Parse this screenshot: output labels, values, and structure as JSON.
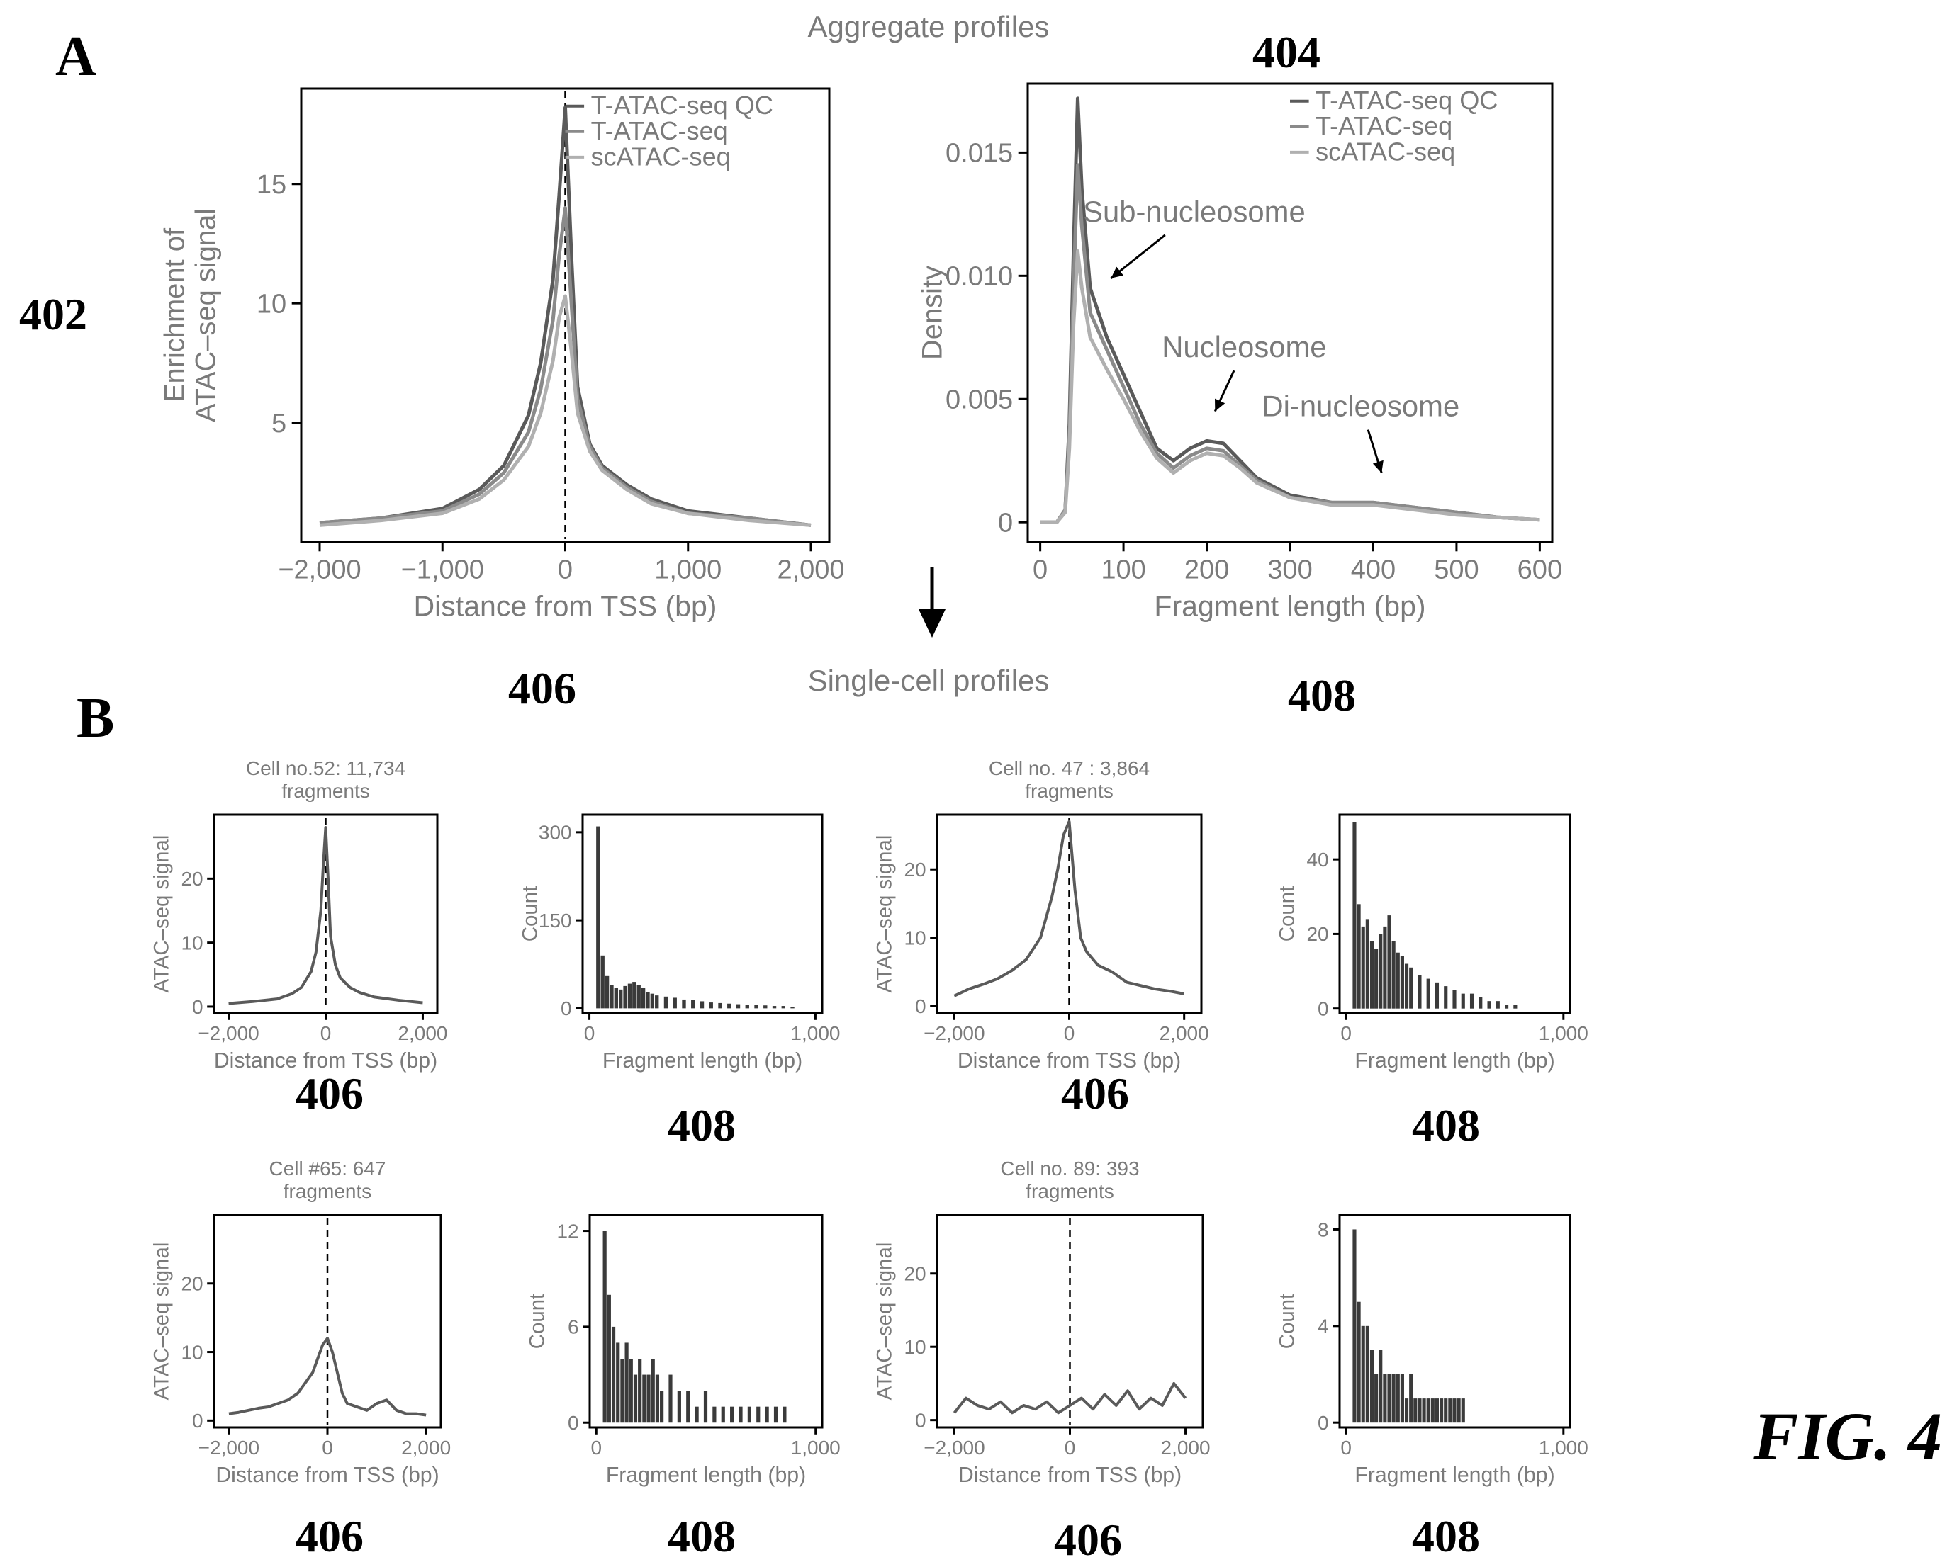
{
  "figure": {
    "panel_a_letter": "A",
    "panel_b_letter": "B",
    "aggregate_heading": "Aggregate profiles",
    "single_cell_heading": "Single-cell profiles",
    "fig_label": "FIG. 4",
    "refs": {
      "r402": "402",
      "r404": "404",
      "r406": "406",
      "r408": "408"
    }
  },
  "chart_data": [
    {
      "id": "agg-tss",
      "type": "line",
      "title": "",
      "xlabel": "Distance from TSS (bp)",
      "ylabel_lines": [
        "Enrichment of",
        "ATAC–seq signal"
      ],
      "xlim": [
        -2150,
        2150
      ],
      "ylim": [
        0,
        19
      ],
      "xticks": [
        -2000,
        -1000,
        0,
        1000,
        2000
      ],
      "xtick_labels": [
        "−2,000",
        "−1,000",
        "0",
        "1,000",
        "2,000"
      ],
      "yticks": [
        5,
        10,
        15
      ],
      "ytick_labels": [
        "5",
        "10",
        "15"
      ],
      "vline_x": 0,
      "legend": {
        "position": "top-right",
        "entries": [
          "T-ATAC-seq QC",
          "T-ATAC-seq",
          "scATAC-seq"
        ]
      },
      "series": [
        {
          "name": "T-ATAC-seq QC",
          "x": [
            -2000,
            -1500,
            -1000,
            -700,
            -500,
            -300,
            -200,
            -100,
            -50,
            0,
            50,
            100,
            200,
            300,
            500,
            700,
            1000,
            1500,
            2000
          ],
          "y": [
            0.8,
            1.0,
            1.4,
            2.2,
            3.2,
            5.3,
            7.5,
            11.0,
            14.5,
            18.2,
            12.0,
            6.5,
            4.1,
            3.2,
            2.4,
            1.8,
            1.3,
            1.0,
            0.7
          ]
        },
        {
          "name": "T-ATAC-seq",
          "x": [
            -2000,
            -1500,
            -1000,
            -700,
            -500,
            -300,
            -200,
            -100,
            -50,
            0,
            50,
            100,
            200,
            300,
            500,
            700,
            1000,
            1500,
            2000
          ],
          "y": [
            0.8,
            1.0,
            1.3,
            2.0,
            2.9,
            4.6,
            6.4,
            9.3,
            12.0,
            14.0,
            10.0,
            6.0,
            4.0,
            3.1,
            2.3,
            1.7,
            1.2,
            1.0,
            0.7
          ]
        },
        {
          "name": "scATAC-seq",
          "x": [
            -2000,
            -1500,
            -1000,
            -700,
            -500,
            -300,
            -200,
            -100,
            -50,
            0,
            50,
            100,
            200,
            300,
            500,
            700,
            1000,
            1500,
            2000
          ],
          "y": [
            0.7,
            0.9,
            1.2,
            1.8,
            2.6,
            4.0,
            5.4,
            7.6,
            9.4,
            10.3,
            8.0,
            5.4,
            3.8,
            3.0,
            2.2,
            1.6,
            1.2,
            0.9,
            0.7
          ]
        }
      ]
    },
    {
      "id": "agg-frag",
      "type": "line",
      "title": "",
      "xlabel": "Fragment length (bp)",
      "ylabel": "Density",
      "xlim": [
        -15,
        615
      ],
      "ylim": [
        -0.0008,
        0.0178
      ],
      "xticks": [
        0,
        100,
        200,
        300,
        400,
        500,
        600
      ],
      "xtick_labels": [
        "0",
        "100",
        "200",
        "300",
        "400",
        "500",
        "600"
      ],
      "yticks": [
        0,
        0.005,
        0.01,
        0.015
      ],
      "ytick_labels": [
        "0",
        "0.005",
        "0.010",
        "0.015"
      ],
      "legend": {
        "position": "top-right",
        "entries": [
          "T-ATAC-seq QC",
          "T-ATAC-seq",
          "scATAC-seq"
        ]
      },
      "annotations": [
        {
          "text": "Sub-nucleosome",
          "x": 185,
          "y": 0.0122,
          "arrow_to": [
            85,
            0.0099
          ]
        },
        {
          "text": "Nucleosome",
          "x": 245,
          "y": 0.0067,
          "arrow_to": [
            210,
            0.0045
          ]
        },
        {
          "text": "Di-nucleosome",
          "x": 385,
          "y": 0.0043,
          "arrow_to": [
            410,
            0.002
          ]
        }
      ],
      "series": [
        {
          "name": "T-ATAC-seq QC",
          "x": [
            0,
            20,
            30,
            35,
            40,
            45,
            50,
            60,
            80,
            100,
            120,
            140,
            160,
            180,
            200,
            220,
            240,
            260,
            300,
            350,
            400,
            450,
            500,
            550,
            600
          ],
          "y": [
            0,
            0,
            0.0005,
            0.004,
            0.011,
            0.0172,
            0.0135,
            0.0095,
            0.0075,
            0.006,
            0.0045,
            0.003,
            0.0025,
            0.003,
            0.0033,
            0.0032,
            0.0025,
            0.0018,
            0.0011,
            0.0008,
            0.0008,
            0.0006,
            0.0004,
            0.0002,
            0.0001
          ]
        },
        {
          "name": "T-ATAC-seq",
          "x": [
            0,
            20,
            30,
            35,
            40,
            45,
            50,
            60,
            80,
            100,
            120,
            140,
            160,
            180,
            200,
            220,
            240,
            260,
            300,
            350,
            400,
            450,
            500,
            550,
            600
          ],
          "y": [
            0,
            0,
            0.0005,
            0.0035,
            0.0095,
            0.0145,
            0.012,
            0.0085,
            0.007,
            0.0055,
            0.004,
            0.0028,
            0.0022,
            0.0027,
            0.003,
            0.0029,
            0.0023,
            0.0017,
            0.001,
            0.0008,
            0.0008,
            0.0006,
            0.0004,
            0.0002,
            0.0001
          ]
        },
        {
          "name": "scATAC-seq",
          "x": [
            0,
            20,
            30,
            35,
            40,
            45,
            50,
            60,
            80,
            100,
            120,
            140,
            160,
            180,
            200,
            220,
            240,
            260,
            300,
            350,
            400,
            450,
            500,
            550,
            600
          ],
          "y": [
            0,
            0,
            0.0004,
            0.003,
            0.008,
            0.011,
            0.0095,
            0.0075,
            0.0062,
            0.005,
            0.0037,
            0.0026,
            0.002,
            0.0025,
            0.0028,
            0.0027,
            0.0022,
            0.0016,
            0.001,
            0.0007,
            0.0007,
            0.0005,
            0.0003,
            0.0002,
            0.0001
          ]
        }
      ]
    },
    {
      "id": "cell52-tss",
      "type": "line",
      "title_lines": [
        "Cell no.52: 11,734",
        "fragments"
      ],
      "xlabel": "Distance from TSS (bp)",
      "ylabel": "ATAC–seq signal",
      "xlim": [
        -2300,
        2300
      ],
      "ylim": [
        -1,
        30
      ],
      "xticks": [
        -2000,
        0,
        2000
      ],
      "xtick_labels": [
        "−2,000",
        "0",
        "2,000"
      ],
      "yticks": [
        0,
        10,
        20
      ],
      "ytick_labels": [
        "0",
        "10",
        "20"
      ],
      "vline_x": 0,
      "series": [
        {
          "x": [
            -2000,
            -1500,
            -1000,
            -700,
            -500,
            -300,
            -200,
            -100,
            -50,
            0,
            50,
            100,
            200,
            300,
            500,
            700,
            1000,
            1500,
            2000
          ],
          "y": [
            0.5,
            0.8,
            1.2,
            2.0,
            3.0,
            5.5,
            8.5,
            15.0,
            22.0,
            28.0,
            20.0,
            11.0,
            6.5,
            4.5,
            3.0,
            2.2,
            1.5,
            1.0,
            0.6
          ]
        }
      ]
    },
    {
      "id": "cell52-frag",
      "type": "bar",
      "title": "",
      "xlabel": "Fragment length (bp)",
      "ylabel": "Count",
      "xlim": [
        -30,
        1030
      ],
      "ylim": [
        -8,
        330
      ],
      "xticks": [
        0,
        1000
      ],
      "xtick_labels": [
        "0",
        "1,000"
      ],
      "yticks": [
        0,
        150,
        300
      ],
      "ytick_labels": [
        "0",
        "150",
        "300"
      ],
      "bin_width": 20,
      "x": [
        40,
        60,
        80,
        100,
        120,
        140,
        160,
        180,
        200,
        220,
        240,
        260,
        280,
        300,
        340,
        380,
        420,
        460,
        500,
        540,
        580,
        620,
        660,
        700,
        740,
        780,
        820,
        860,
        900
      ],
      "values": [
        310,
        90,
        55,
        40,
        35,
        32,
        38,
        42,
        45,
        40,
        35,
        28,
        25,
        22,
        20,
        18,
        15,
        14,
        12,
        10,
        9,
        8,
        7,
        6,
        6,
        5,
        4,
        4,
        2
      ]
    },
    {
      "id": "cell47-tss",
      "type": "line",
      "title_lines": [
        "Cell no. 47 : 3,864",
        "fragments"
      ],
      "xlabel": "Distance from TSS (bp)",
      "ylabel": "ATAC–seq signal",
      "xlim": [
        -2300,
        2300
      ],
      "ylim": [
        -1,
        28
      ],
      "xticks": [
        -2000,
        0,
        2000
      ],
      "xtick_labels": [
        "−2,000",
        "0",
        "2,000"
      ],
      "yticks": [
        0,
        10,
        20
      ],
      "ytick_labels": [
        "0",
        "10",
        "20"
      ],
      "vline_x": 0,
      "series": [
        {
          "x": [
            -2000,
            -1750,
            -1500,
            -1250,
            -1000,
            -750,
            -500,
            -300,
            -200,
            -100,
            0,
            100,
            200,
            300,
            500,
            750,
            1000,
            1250,
            1500,
            1750,
            2000
          ],
          "y": [
            1.5,
            2.5,
            3.2,
            4.0,
            5.2,
            6.8,
            10.0,
            16.0,
            20.0,
            25.0,
            27.0,
            17.0,
            10.0,
            8.0,
            6.0,
            5.0,
            3.5,
            3.0,
            2.5,
            2.2,
            1.8
          ]
        }
      ]
    },
    {
      "id": "cell47-frag",
      "type": "bar",
      "title": "",
      "xlabel": "Fragment length (bp)",
      "ylabel": "Count",
      "xlim": [
        -30,
        1030
      ],
      "ylim": [
        -1.2,
        52
      ],
      "xticks": [
        0,
        1000
      ],
      "xtick_labels": [
        "0",
        "1,000"
      ],
      "yticks": [
        0,
        20,
        40
      ],
      "ytick_labels": [
        "0",
        "20",
        "40"
      ],
      "bin_width": 20,
      "x": [
        40,
        60,
        80,
        100,
        120,
        140,
        160,
        180,
        200,
        220,
        240,
        260,
        280,
        300,
        340,
        380,
        420,
        460,
        500,
        540,
        580,
        620,
        660,
        700,
        740,
        780
      ],
      "values": [
        50,
        28,
        22,
        24,
        18,
        16,
        20,
        22,
        25,
        18,
        15,
        14,
        12,
        11,
        9,
        8,
        7,
        6,
        5,
        4,
        4,
        3,
        2,
        2,
        1,
        1
      ]
    },
    {
      "id": "cell65-tss",
      "type": "line",
      "title_lines": [
        "Cell #65: 647",
        "fragments"
      ],
      "xlabel": "Distance from TSS (bp)",
      "ylabel": "ATAC–seq signal",
      "xlim": [
        -2300,
        2300
      ],
      "ylim": [
        -1,
        30
      ],
      "xticks": [
        -2000,
        0,
        2000
      ],
      "xtick_labels": [
        "−2,000",
        "0",
        "2,000"
      ],
      "yticks": [
        0,
        10,
        20
      ],
      "ytick_labels": [
        "0",
        "10",
        "20"
      ],
      "vline_x": 0,
      "series": [
        {
          "x": [
            -2000,
            -1800,
            -1600,
            -1400,
            -1200,
            -1000,
            -800,
            -600,
            -400,
            -300,
            -200,
            -100,
            0,
            100,
            200,
            300,
            400,
            600,
            800,
            1000,
            1200,
            1400,
            1600,
            1800,
            2000
          ],
          "y": [
            1.0,
            1.2,
            1.5,
            1.8,
            2.0,
            2.5,
            3.0,
            4.0,
            6.0,
            7.0,
            9.0,
            11.0,
            12.0,
            10.0,
            7.0,
            4.0,
            2.5,
            2.0,
            1.5,
            2.5,
            3.0,
            1.5,
            1.0,
            1.0,
            0.8
          ]
        }
      ]
    },
    {
      "id": "cell65-frag",
      "type": "bar",
      "title": "",
      "xlabel": "Fragment length (bp)",
      "ylabel": "Count",
      "xlim": [
        -30,
        1030
      ],
      "ylim": [
        -0.3,
        13
      ],
      "xticks": [
        0,
        1000
      ],
      "xtick_labels": [
        "0",
        "1,000"
      ],
      "yticks": [
        0,
        6,
        12
      ],
      "ytick_labels": [
        "0",
        "6",
        "12"
      ],
      "bin_width": 20,
      "x": [
        40,
        60,
        80,
        100,
        120,
        140,
        160,
        180,
        200,
        220,
        240,
        260,
        280,
        300,
        340,
        380,
        420,
        460,
        500,
        540,
        580,
        620,
        660,
        700,
        740,
        780,
        820,
        860
      ],
      "values": [
        12,
        8,
        6,
        5,
        4,
        5,
        4,
        3,
        4,
        3,
        3,
        4,
        3,
        2,
        3,
        2,
        2,
        1,
        2,
        1,
        1,
        1,
        1,
        1,
        1,
        1,
        1,
        1
      ]
    },
    {
      "id": "cell89-tss",
      "type": "line",
      "title_lines": [
        "Cell no. 89: 393",
        "fragments"
      ],
      "xlabel": "Distance from TSS (bp)",
      "ylabel": "ATAC–seq signal",
      "xlim": [
        -2300,
        2300
      ],
      "ylim": [
        -1,
        28
      ],
      "xticks": [
        -2000,
        0,
        2000
      ],
      "xtick_labels": [
        "−2,000",
        "0",
        "2,000"
      ],
      "yticks": [
        0,
        10,
        20
      ],
      "ytick_labels": [
        "0",
        "10",
        "20"
      ],
      "vline_x": 0,
      "series": [
        {
          "x": [
            -2000,
            -1800,
            -1600,
            -1400,
            -1200,
            -1000,
            -800,
            -600,
            -400,
            -200,
            0,
            200,
            400,
            600,
            800,
            1000,
            1200,
            1400,
            1600,
            1800,
            2000
          ],
          "y": [
            1.0,
            3.0,
            2.0,
            1.5,
            2.5,
            1.0,
            2.0,
            1.5,
            2.5,
            1.0,
            2.0,
            3.0,
            1.5,
            3.5,
            2.0,
            4.0,
            1.5,
            3.0,
            2.0,
            5.0,
            3.0
          ]
        }
      ]
    },
    {
      "id": "cell89-frag",
      "type": "bar",
      "title": "",
      "xlabel": "Fragment length (bp)",
      "ylabel": "Count",
      "xlim": [
        -30,
        1030
      ],
      "ylim": [
        -0.2,
        8.6
      ],
      "xticks": [
        0,
        1000
      ],
      "xtick_labels": [
        "0",
        "1,000"
      ],
      "yticks": [
        0,
        4,
        8
      ],
      "ytick_labels": [
        "0",
        "4",
        "8"
      ],
      "bin_width": 20,
      "x": [
        40,
        60,
        80,
        100,
        120,
        140,
        160,
        180,
        200,
        220,
        240,
        260,
        280,
        300,
        320,
        340,
        360,
        380,
        400,
        420,
        440,
        460,
        480,
        500,
        520,
        540
      ],
      "values": [
        8,
        5,
        4,
        4,
        3,
        2,
        3,
        2,
        2,
        2,
        2,
        2,
        1,
        2,
        1,
        1,
        1,
        1,
        1,
        1,
        1,
        1,
        1,
        1,
        1,
        1
      ]
    }
  ]
}
